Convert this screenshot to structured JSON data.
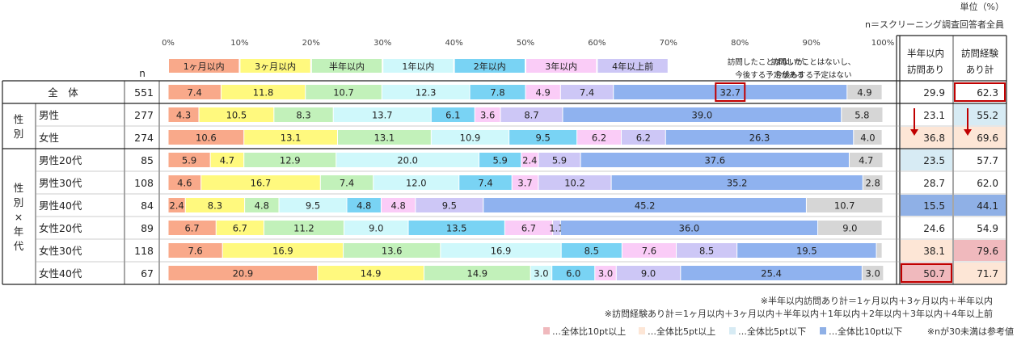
{
  "header": {
    "unit": "単位（%）",
    "base": "n＝スクリーニング調査回答者全員",
    "n_label": "n"
  },
  "legend": {
    "items": [
      {
        "label": "1ヶ月以内",
        "color": "#f9a98a"
      },
      {
        "label": "3ヶ月以内",
        "color": "#fff97e"
      },
      {
        "label": "半年以内",
        "color": "#c2f1ba"
      },
      {
        "label": "1年以内",
        "color": "#cff8fb"
      },
      {
        "label": "2年以内",
        "color": "#79d3f4"
      },
      {
        "label": "3年以内",
        "color": "#faccf7"
      },
      {
        "label": "4年以上前",
        "color": "#cdc7f6"
      },
      {
        "label": "訪問したことはないが、今後する予定がある",
        "color": "#8fb2ef"
      },
      {
        "label": "訪問したことはないし、今後もする予定はない",
        "color": "#d6d6d6"
      }
    ]
  },
  "summary_headers": {
    "col1_line1": "半年以内",
    "col1_line2": "訪問あり",
    "col2_line1": "訪問経験",
    "col2_line2": "あり計"
  },
  "row_groups": [
    {
      "label": "全　体",
      "rows": [
        0
      ]
    },
    {
      "label": "性別",
      "rows": [
        1,
        2
      ]
    },
    {
      "label": "性別×年代",
      "rows": [
        3,
        4,
        5,
        6,
        7,
        8
      ]
    }
  ],
  "notes": {
    "note1": "※半年以内訪問あり計＝1ヶ月以内＋3ヶ月以内＋半年以内",
    "note2": "※訪問経験あり計＝1ヶ月以内＋3ヶ月以内＋半年以内＋1年以内＋2年以内＋3年以内＋4年以上前",
    "key": [
      {
        "label": "…全体比10pt以上",
        "color": "#f0b9bd"
      },
      {
        "label": "…全体比5pt以上",
        "color": "#fde6d6"
      },
      {
        "label": "…全体比5pt以下",
        "color": "#d7ebf4"
      },
      {
        "label": "…全体比10pt以下",
        "color": "#8fb0e6"
      }
    ],
    "small_n": "※nが30未満は参考値"
  },
  "chart_data": {
    "type": "bar",
    "orientation": "horizontal",
    "stacked": true,
    "percent": true,
    "xlim": [
      0,
      100
    ],
    "x_ticks": [
      "0%",
      "10%",
      "20%",
      "30%",
      "40%",
      "50%",
      "60%",
      "70%",
      "80%",
      "90%",
      "100%"
    ],
    "categories": [
      "全　体",
      "男性",
      "女性",
      "男性20代",
      "男性30代",
      "男性40代",
      "女性20代",
      "女性30代",
      "女性40代"
    ],
    "n": [
      551,
      277,
      274,
      85,
      108,
      84,
      89,
      118,
      67
    ],
    "series": [
      {
        "name": "1ヶ月以内",
        "values": [
          7.4,
          4.3,
          10.6,
          5.9,
          4.6,
          2.4,
          6.7,
          7.6,
          20.9
        ]
      },
      {
        "name": "3ヶ月以内",
        "values": [
          11.8,
          10.5,
          13.1,
          4.7,
          16.7,
          8.3,
          6.7,
          16.9,
          14.9
        ]
      },
      {
        "name": "半年以内",
        "values": [
          10.7,
          8.3,
          13.1,
          12.9,
          7.4,
          4.8,
          11.2,
          13.6,
          14.9
        ]
      },
      {
        "name": "1年以内",
        "values": [
          12.3,
          13.7,
          10.9,
          20.0,
          12.0,
          9.5,
          9.0,
          16.9,
          3.0
        ]
      },
      {
        "name": "2年以内",
        "values": [
          7.8,
          6.1,
          9.5,
          5.9,
          7.4,
          4.8,
          13.5,
          8.5,
          6.0
        ]
      },
      {
        "name": "3年以内",
        "values": [
          4.9,
          3.6,
          6.2,
          2.4,
          3.7,
          4.8,
          6.7,
          7.6,
          3.0
        ]
      },
      {
        "name": "4年以上前",
        "values": [
          7.4,
          8.7,
          6.2,
          5.9,
          10.2,
          9.5,
          1.1,
          8.5,
          9.0
        ]
      },
      {
        "name": "訪問したことはないが、今後する予定がある",
        "values": [
          32.7,
          39.0,
          26.3,
          37.6,
          35.2,
          45.2,
          36.0,
          19.5,
          25.4
        ]
      },
      {
        "name": "訪問したことはないし、今後もする予定はない",
        "values": [
          4.9,
          5.8,
          4.0,
          4.7,
          2.8,
          10.7,
          9.0,
          0.8,
          3.0
        ]
      }
    ],
    "summary": {
      "half_year": [
        29.9,
        23.1,
        36.8,
        23.5,
        28.7,
        15.5,
        24.6,
        38.1,
        50.7
      ],
      "experienced": [
        62.3,
        55.2,
        69.6,
        57.7,
        62.0,
        44.1,
        54.9,
        79.6,
        71.7
      ]
    },
    "highlight_levels": {
      "half_year": [
        0,
        0,
        1,
        -1,
        0,
        -2,
        0,
        1,
        2
      ],
      "experienced": [
        0,
        -1,
        1,
        0,
        0,
        -2,
        0,
        2,
        1
      ]
    },
    "hidden_labels": [
      {
        "row": 7,
        "series": 8
      }
    ],
    "highlight_boxes": [
      {
        "row": 0,
        "series": 7
      },
      {
        "row": 0,
        "summary": "experienced"
      },
      {
        "row": 8,
        "summary": "half_year"
      }
    ],
    "arrows": [
      {
        "row": 2,
        "summary": "half_year"
      },
      {
        "row": 2,
        "summary": "experienced"
      }
    ]
  }
}
